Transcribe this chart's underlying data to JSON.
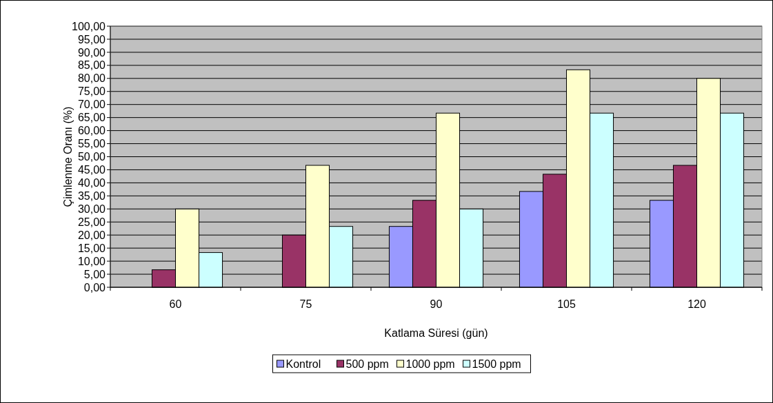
{
  "chart_data": {
    "type": "bar",
    "xlabel": "Katlama Süresi (gün)",
    "ylabel": "Çimlenme Oranı (%)",
    "categories": [
      "60",
      "75",
      "90",
      "105",
      "120"
    ],
    "series": [
      {
        "name": "Kontrol",
        "color": "#9999ff",
        "values": [
          0,
          0,
          23.3,
          36.7,
          33.3
        ]
      },
      {
        "name": "500 ppm",
        "color": "#993366",
        "values": [
          6.7,
          20,
          33.3,
          43.3,
          46.7
        ]
      },
      {
        "name": "1000 ppm",
        "color": "#ffffcc",
        "values": [
          30,
          46.7,
          66.7,
          83.3,
          80
        ]
      },
      {
        "name": "1500 ppm",
        "color": "#ccffff",
        "values": [
          13.3,
          23.3,
          30,
          66.7,
          66.7
        ]
      }
    ],
    "ylim": [
      0,
      100
    ],
    "yticks": [
      {
        "value": 0,
        "label": "0,00"
      },
      {
        "value": 5,
        "label": "5,00"
      },
      {
        "value": 10,
        "label": "10,00"
      },
      {
        "value": 15,
        "label": "15,00"
      },
      {
        "value": 20,
        "label": "20,00"
      },
      {
        "value": 25,
        "label": "25,00"
      },
      {
        "value": 30,
        "label": "30,00"
      },
      {
        "value": 35,
        "label": "35,00"
      },
      {
        "value": 40,
        "label": "40,00"
      },
      {
        "value": 45,
        "label": "45,00"
      },
      {
        "value": 50,
        "label": "50,00"
      },
      {
        "value": 55,
        "label": "55,00"
      },
      {
        "value": 60,
        "label": "60,00"
      },
      {
        "value": 65,
        "label": "65,00"
      },
      {
        "value": 70,
        "label": "70,00"
      },
      {
        "value": 75,
        "label": "75,00"
      },
      {
        "value": 80,
        "label": "80,00"
      },
      {
        "value": 85,
        "label": "85,00"
      },
      {
        "value": 90,
        "label": "90,00"
      },
      {
        "value": 95,
        "label": "95,00"
      },
      {
        "value": 100,
        "label": "100,00"
      }
    ],
    "grid": "y",
    "legend": "bottom"
  }
}
